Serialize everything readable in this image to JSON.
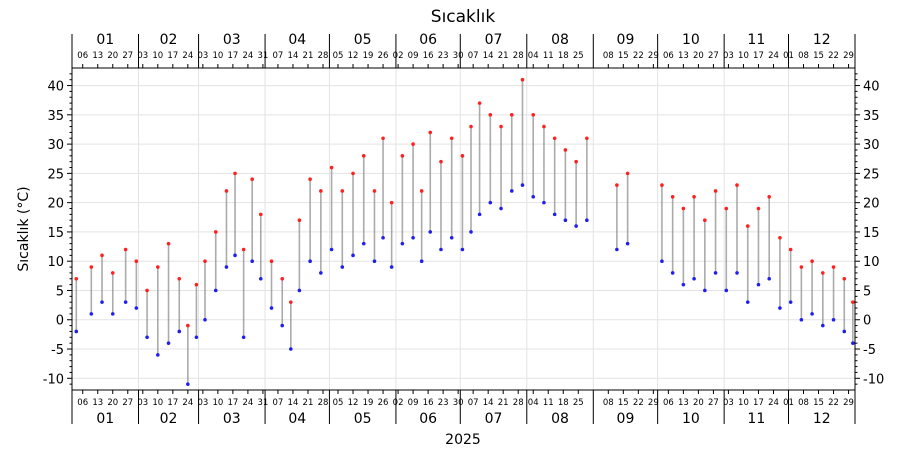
{
  "chart_data": {
    "type": "scatter",
    "title": "Sıcaklık",
    "ylabel": "Sıcaklık (°C)",
    "xlabel": "2025",
    "ylim": [
      -12,
      43
    ],
    "y_ticks": [
      -10,
      -5,
      0,
      5,
      10,
      15,
      20,
      25,
      30,
      35,
      40
    ],
    "grid": true,
    "x_range": [
      "2025-01-01",
      "2025-12-31"
    ],
    "month_labels": [
      "01",
      "02",
      "03",
      "04",
      "05",
      "06",
      "07",
      "08",
      "09",
      "10",
      "11",
      "12"
    ],
    "day_ticks": [
      {
        "month": 1,
        "days": [
          "06",
          "13",
          "20",
          "27"
        ]
      },
      {
        "month": 2,
        "days": [
          "03",
          "10",
          "17",
          "24"
        ]
      },
      {
        "month": 3,
        "days": [
          "03",
          "10",
          "17",
          "24",
          "31"
        ]
      },
      {
        "month": 4,
        "days": [
          "07",
          "14",
          "21",
          "28"
        ]
      },
      {
        "month": 5,
        "days": [
          "05",
          "12",
          "19",
          "26"
        ]
      },
      {
        "month": 6,
        "days": [
          "02",
          "09",
          "16",
          "23",
          "30"
        ]
      },
      {
        "month": 7,
        "days": [
          "07",
          "14",
          "21",
          "28"
        ]
      },
      {
        "month": 8,
        "days": [
          "04",
          "11",
          "18",
          "25"
        ]
      },
      {
        "month": 9,
        "days": [
          "08",
          "15",
          "22",
          "29"
        ]
      },
      {
        "month": 10,
        "days": [
          "06",
          "13",
          "20",
          "27"
        ]
      },
      {
        "month": 11,
        "days": [
          "03",
          "10",
          "17",
          "24"
        ]
      },
      {
        "month": 12,
        "days": [
          "01",
          "08",
          "15",
          "22",
          "29"
        ]
      }
    ],
    "series": [
      {
        "role": "daily maximum",
        "color": "#ff2020",
        "points": [
          [
            "2025-01-03",
            7
          ],
          [
            "2025-01-10",
            9
          ],
          [
            "2025-01-15",
            11
          ],
          [
            "2025-01-20",
            8
          ],
          [
            "2025-01-26",
            12
          ],
          [
            "2025-01-31",
            10
          ],
          [
            "2025-02-05",
            5
          ],
          [
            "2025-02-10",
            9
          ],
          [
            "2025-02-15",
            13
          ],
          [
            "2025-02-20",
            7
          ],
          [
            "2025-02-24",
            -1
          ],
          [
            "2025-02-28",
            6
          ],
          [
            "2025-03-04",
            10
          ],
          [
            "2025-03-09",
            15
          ],
          [
            "2025-03-14",
            22
          ],
          [
            "2025-03-18",
            25
          ],
          [
            "2025-03-22",
            12
          ],
          [
            "2025-03-26",
            24
          ],
          [
            "2025-03-30",
            18
          ],
          [
            "2025-04-04",
            10
          ],
          [
            "2025-04-09",
            7
          ],
          [
            "2025-04-13",
            3
          ],
          [
            "2025-04-17",
            17
          ],
          [
            "2025-04-22",
            24
          ],
          [
            "2025-04-27",
            22
          ],
          [
            "2025-05-02",
            26
          ],
          [
            "2025-05-07",
            22
          ],
          [
            "2025-05-12",
            25
          ],
          [
            "2025-05-17",
            28
          ],
          [
            "2025-05-22",
            22
          ],
          [
            "2025-05-26",
            31
          ],
          [
            "2025-05-30",
            20
          ],
          [
            "2025-06-04",
            28
          ],
          [
            "2025-06-09",
            30
          ],
          [
            "2025-06-13",
            22
          ],
          [
            "2025-06-17",
            32
          ],
          [
            "2025-06-22",
            27
          ],
          [
            "2025-06-27",
            31
          ],
          [
            "2025-07-02",
            28
          ],
          [
            "2025-07-06",
            33
          ],
          [
            "2025-07-10",
            37
          ],
          [
            "2025-07-15",
            35
          ],
          [
            "2025-07-20",
            33
          ],
          [
            "2025-07-25",
            35
          ],
          [
            "2025-07-30",
            41
          ],
          [
            "2025-08-04",
            35
          ],
          [
            "2025-08-09",
            33
          ],
          [
            "2025-08-14",
            31
          ],
          [
            "2025-08-19",
            29
          ],
          [
            "2025-08-24",
            27
          ],
          [
            "2025-08-29",
            31
          ],
          [
            "2025-09-12",
            23
          ],
          [
            "2025-09-17",
            25
          ],
          [
            "2025-10-03",
            23
          ],
          [
            "2025-10-08",
            21
          ],
          [
            "2025-10-13",
            19
          ],
          [
            "2025-10-18",
            21
          ],
          [
            "2025-10-23",
            17
          ],
          [
            "2025-10-28",
            22
          ],
          [
            "2025-11-02",
            19
          ],
          [
            "2025-11-07",
            23
          ],
          [
            "2025-11-12",
            16
          ],
          [
            "2025-11-17",
            19
          ],
          [
            "2025-11-22",
            21
          ],
          [
            "2025-11-27",
            14
          ],
          [
            "2025-12-02",
            12
          ],
          [
            "2025-12-07",
            9
          ],
          [
            "2025-12-12",
            10
          ],
          [
            "2025-12-17",
            8
          ],
          [
            "2025-12-22",
            9
          ],
          [
            "2025-12-27",
            7
          ],
          [
            "2025-12-31",
            3
          ]
        ]
      },
      {
        "role": "daily minimum",
        "color": "#2020ee",
        "points": [
          [
            "2025-01-03",
            -2
          ],
          [
            "2025-01-10",
            1
          ],
          [
            "2025-01-15",
            3
          ],
          [
            "2025-01-20",
            1
          ],
          [
            "2025-01-26",
            3
          ],
          [
            "2025-01-31",
            2
          ],
          [
            "2025-02-05",
            -3
          ],
          [
            "2025-02-10",
            -6
          ],
          [
            "2025-02-15",
            -4
          ],
          [
            "2025-02-20",
            -2
          ],
          [
            "2025-02-24",
            -11
          ],
          [
            "2025-02-28",
            -3
          ],
          [
            "2025-03-04",
            0
          ],
          [
            "2025-03-09",
            5
          ],
          [
            "2025-03-14",
            9
          ],
          [
            "2025-03-18",
            11
          ],
          [
            "2025-03-22",
            -3
          ],
          [
            "2025-03-26",
            10
          ],
          [
            "2025-03-30",
            7
          ],
          [
            "2025-04-04",
            2
          ],
          [
            "2025-04-09",
            -1
          ],
          [
            "2025-04-13",
            -5
          ],
          [
            "2025-04-17",
            5
          ],
          [
            "2025-04-22",
            10
          ],
          [
            "2025-04-27",
            8
          ],
          [
            "2025-05-02",
            12
          ],
          [
            "2025-05-07",
            9
          ],
          [
            "2025-05-12",
            11
          ],
          [
            "2025-05-17",
            13
          ],
          [
            "2025-05-22",
            10
          ],
          [
            "2025-05-26",
            14
          ],
          [
            "2025-05-30",
            9
          ],
          [
            "2025-06-04",
            13
          ],
          [
            "2025-06-09",
            14
          ],
          [
            "2025-06-13",
            10
          ],
          [
            "2025-06-17",
            15
          ],
          [
            "2025-06-22",
            12
          ],
          [
            "2025-06-27",
            14
          ],
          [
            "2025-07-02",
            12
          ],
          [
            "2025-07-06",
            15
          ],
          [
            "2025-07-10",
            18
          ],
          [
            "2025-07-15",
            20
          ],
          [
            "2025-07-20",
            19
          ],
          [
            "2025-07-25",
            22
          ],
          [
            "2025-07-30",
            23
          ],
          [
            "2025-08-04",
            21
          ],
          [
            "2025-08-09",
            20
          ],
          [
            "2025-08-14",
            18
          ],
          [
            "2025-08-19",
            17
          ],
          [
            "2025-08-24",
            16
          ],
          [
            "2025-08-29",
            17
          ],
          [
            "2025-09-12",
            12
          ],
          [
            "2025-09-17",
            13
          ],
          [
            "2025-10-03",
            10
          ],
          [
            "2025-10-08",
            8
          ],
          [
            "2025-10-13",
            6
          ],
          [
            "2025-10-18",
            7
          ],
          [
            "2025-10-23",
            5
          ],
          [
            "2025-10-28",
            8
          ],
          [
            "2025-11-02",
            5
          ],
          [
            "2025-11-07",
            8
          ],
          [
            "2025-11-12",
            3
          ],
          [
            "2025-11-17",
            6
          ],
          [
            "2025-11-22",
            7
          ],
          [
            "2025-11-27",
            2
          ],
          [
            "2025-12-02",
            3
          ],
          [
            "2025-12-07",
            0
          ],
          [
            "2025-12-12",
            1
          ],
          [
            "2025-12-17",
            -1
          ],
          [
            "2025-12-22",
            0
          ],
          [
            "2025-12-27",
            -2
          ],
          [
            "2025-12-31",
            -4
          ]
        ]
      }
    ]
  }
}
